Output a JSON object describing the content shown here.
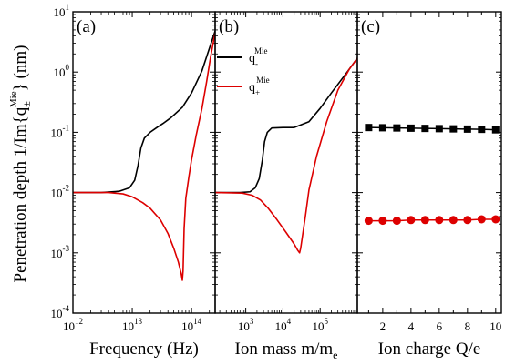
{
  "chart_data": [
    {
      "type": "line",
      "panel_label": "(a)",
      "xlabel": "Frequency (Hz)",
      "x_scale": "log",
      "xlim": [
        1000000000000.0,
        250000000000000.0
      ],
      "x_ticks": [
        1000000000000.0,
        10000000000000.0,
        100000000000000.0
      ],
      "x_tick_labels": [
        {
          "base": "10",
          "exp": "12"
        },
        {
          "base": "10",
          "exp": "13"
        },
        {
          "base": "10",
          "exp": "14"
        }
      ],
      "ylabel": "Penetration depth 1/Im{q±Mie} (nm)",
      "y_scale": "log",
      "ylim": [
        0.0001,
        10
      ],
      "y_ticks": [
        0.0001,
        0.001,
        0.01,
        0.1,
        1,
        10
      ],
      "y_tick_labels": [
        {
          "base": "10",
          "exp": "-4"
        },
        {
          "base": "10",
          "exp": "-3"
        },
        {
          "base": "10",
          "exp": "-2"
        },
        {
          "base": "10",
          "exp": "-1"
        },
        {
          "base": "10",
          "exp": "0"
        },
        {
          "base": "10",
          "exp": "1"
        }
      ],
      "series": [
        {
          "color": "#000000",
          "points": [
            [
              1000000000000.0,
              0.01
            ],
            [
              3000000000000.0,
              0.01
            ],
            [
              6000000000000.0,
              0.0105
            ],
            [
              9000000000000.0,
              0.012
            ],
            [
              11000000000000.0,
              0.016
            ],
            [
              12500000000000.0,
              0.028
            ],
            [
              14000000000000.0,
              0.055
            ],
            [
              16000000000000.0,
              0.08
            ],
            [
              20000000000000.0,
              0.1
            ],
            [
              26000000000000.0,
              0.12
            ],
            [
              33000000000000.0,
              0.14
            ],
            [
              45000000000000.0,
              0.175
            ],
            [
              70000000000000.0,
              0.26
            ],
            [
              100000000000000.0,
              0.45
            ],
            [
              150000000000000.0,
              1.05
            ],
            [
              250000000000000.0,
              4.8
            ]
          ]
        },
        {
          "color": "#dd0000",
          "points": [
            [
              1000000000000.0,
              0.01
            ],
            [
              4000000000000.0,
              0.01
            ],
            [
              7000000000000.0,
              0.0095
            ],
            [
              10000000000000.0,
              0.0085
            ],
            [
              15000000000000.0,
              0.0068
            ],
            [
              20000000000000.0,
              0.0055
            ],
            [
              30000000000000.0,
              0.0035
            ],
            [
              40000000000000.0,
              0.0021
            ],
            [
              50000000000000.0,
              0.0012
            ],
            [
              60000000000000.0,
              0.0007
            ],
            [
              67000000000000.0,
              0.00045
            ],
            [
              70000000000000.0,
              0.00035
            ],
            [
              72000000000000.0,
              0.0005
            ],
            [
              75000000000000.0,
              0.0025
            ],
            [
              80000000000000.0,
              0.008
            ],
            [
              90000000000000.0,
              0.018
            ],
            [
              100000000000000.0,
              0.035
            ],
            [
              120000000000000.0,
              0.09
            ],
            [
              150000000000000.0,
              0.25
            ],
            [
              180000000000000.0,
              0.7
            ],
            [
              210000000000000.0,
              1.8
            ],
            [
              250000000000000.0,
              4.5
            ]
          ]
        }
      ]
    },
    {
      "type": "line",
      "panel_label": "(b)",
      "xlabel": "Ion mass m/m",
      "xlabel_sub": "e",
      "x_scale": "log",
      "xlim": [
        150,
        1000000.0
      ],
      "x_ticks": [
        1000,
        10000,
        100000
      ],
      "x_tick_labels": [
        {
          "base": "10",
          "exp": "3"
        },
        {
          "base": "10",
          "exp": "4"
        },
        {
          "base": "10",
          "exp": "5"
        }
      ],
      "y_scale": "log",
      "ylim": [
        0.0001,
        10
      ],
      "legend_position": "top-left",
      "legend": [
        {
          "color": "#000000",
          "base": "q",
          "sub": "-",
          "sup": "Mie"
        },
        {
          "color": "#dd0000",
          "base": "q",
          "sub": "+",
          "sup": "Mie"
        }
      ],
      "series": [
        {
          "color": "#000000",
          "points": [
            [
              150,
              0.01
            ],
            [
              700,
              0.01
            ],
            [
              1300,
              0.0103
            ],
            [
              1800,
              0.012
            ],
            [
              2300,
              0.017
            ],
            [
              2800,
              0.035
            ],
            [
              3200,
              0.07
            ],
            [
              3800,
              0.1
            ],
            [
              5000,
              0.118
            ],
            [
              10000,
              0.12
            ],
            [
              20000,
              0.12
            ],
            [
              50000,
              0.15
            ],
            [
              100000,
              0.25
            ],
            [
              200000,
              0.45
            ],
            [
              500000,
              0.95
            ],
            [
              1000000.0,
              1.7
            ]
          ]
        },
        {
          "color": "#dd0000",
          "points": [
            [
              150,
              0.01
            ],
            [
              800,
              0.0098
            ],
            [
              1500,
              0.009
            ],
            [
              2500,
              0.0075
            ],
            [
              4000,
              0.0055
            ],
            [
              7000,
              0.0035
            ],
            [
              12000,
              0.0022
            ],
            [
              20000,
              0.0014
            ],
            [
              25000,
              0.0011
            ],
            [
              28000,
              0.001
            ],
            [
              30000,
              0.0012
            ],
            [
              40000,
              0.004
            ],
            [
              50000,
              0.011
            ],
            [
              80000,
              0.04
            ],
            [
              150000,
              0.15
            ],
            [
              300000,
              0.5
            ],
            [
              600000,
              1.1
            ],
            [
              1000000.0,
              1.7
            ]
          ]
        }
      ]
    },
    {
      "type": "scatter",
      "panel_label": "(c)",
      "xlabel": "Ion charge Q/e",
      "x_scale": "linear",
      "xlim": [
        0.2,
        10.4
      ],
      "x_ticks": [
        2,
        4,
        6,
        8,
        10
      ],
      "x_tick_labels": [
        "2",
        "4",
        "6",
        "8",
        "10"
      ],
      "y_scale": "log",
      "ylim": [
        0.0001,
        10
      ],
      "series": [
        {
          "marker": "square",
          "color": "#000000",
          "x": [
            1,
            2,
            3,
            4,
            5,
            6,
            7,
            8,
            9,
            10
          ],
          "y": [
            0.12,
            0.119,
            0.118,
            0.117,
            0.116,
            0.115,
            0.114,
            0.113,
            0.112,
            0.11
          ]
        },
        {
          "marker": "circle",
          "color": "#dd0000",
          "x": [
            1,
            2,
            3,
            4,
            5,
            6,
            7,
            8,
            9,
            10
          ],
          "y": [
            0.0034,
            0.0034,
            0.0034,
            0.0035,
            0.0035,
            0.0035,
            0.0035,
            0.0035,
            0.0036,
            0.0036
          ]
        }
      ]
    }
  ]
}
